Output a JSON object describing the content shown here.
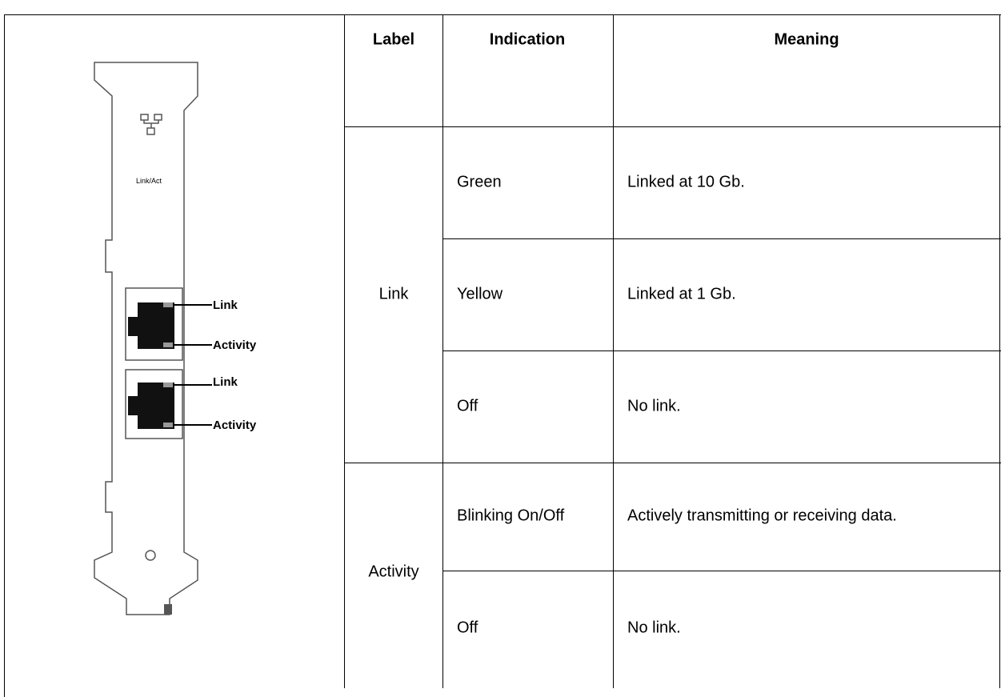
{
  "figure": {
    "port_label": "Link/Act",
    "callouts": [
      "Link",
      "Activity",
      "Link",
      "Activity"
    ]
  },
  "table": {
    "headers": [
      "Label",
      "Indication",
      "Meaning"
    ],
    "groups": [
      {
        "label": "Link",
        "rows": [
          [
            "Green",
            "Linked at 10 Gb."
          ],
          [
            "Yellow",
            "Linked at 1 Gb."
          ],
          [
            "Off",
            "No link."
          ]
        ]
      },
      {
        "label": "Activity",
        "rows": [
          [
            "Blinking On/Off",
            "Actively transmitting or receiving data."
          ],
          [
            "Off",
            "No link."
          ]
        ]
      }
    ]
  }
}
